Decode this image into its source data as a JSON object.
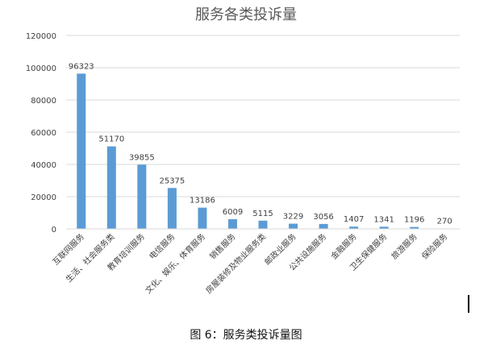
{
  "chart_data": {
    "type": "bar",
    "title": "服务各类投诉量",
    "categories": [
      "互联网服务",
      "生活、社会服务类",
      "教育培训服务",
      "电信服务",
      "文化、娱乐、体育服务",
      "销售服务",
      "房屋装修及物业服务类",
      "邮政业服务",
      "公共设施服务",
      "金融服务",
      "卫生保健服务",
      "旅游服务",
      "保险服务"
    ],
    "values": [
      96323,
      51170,
      39855,
      25375,
      13186,
      6009,
      5115,
      3229,
      3056,
      1407,
      1341,
      1196,
      270
    ],
    "ylim": [
      0,
      120000
    ],
    "yticks": [
      0,
      20000,
      40000,
      60000,
      80000,
      100000,
      120000
    ],
    "grid": true,
    "legend": "none",
    "bar_color": "#5b9bd5"
  },
  "caption": "图 6：服务类投诉量图"
}
